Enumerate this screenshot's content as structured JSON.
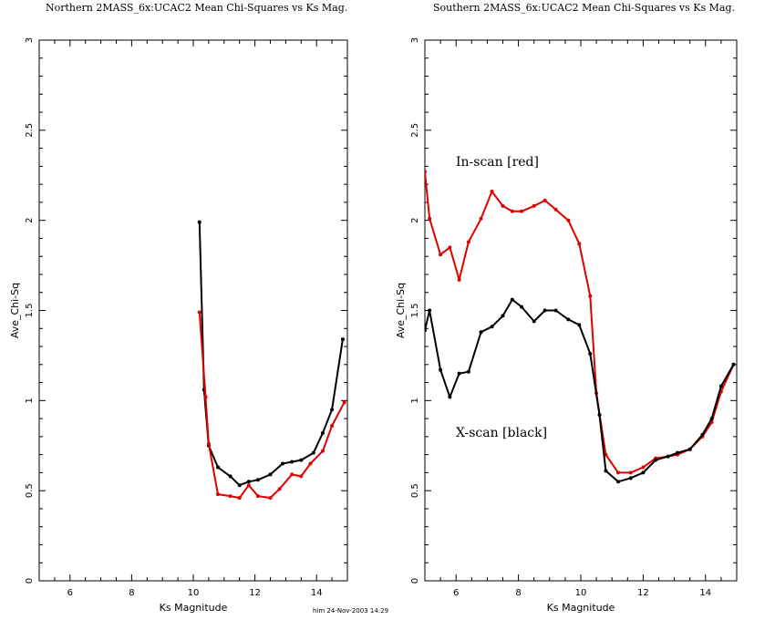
{
  "footer": {
    "stamp": "him 24-Nov-2003 14:29"
  },
  "colors": {
    "red": "#e00000",
    "black": "#000000"
  },
  "chart_data": [
    {
      "type": "line",
      "title": "Northern 2MASS_6x:UCAC2 Mean Chi-Squares vs  Ks Mag.",
      "xlabel": "Ks Magnitude",
      "ylabel": "Ave_Chi-Sq",
      "xlim": [
        5,
        15
      ],
      "ylim": [
        0,
        3
      ],
      "xticks": [
        "6",
        "8",
        "10",
        "12",
        "14"
      ],
      "yticks": [
        "0",
        "0.5",
        "1",
        "1.5",
        "2",
        "2.5",
        "3"
      ],
      "annotations": [],
      "series": [
        {
          "color": "#000000",
          "x": [
            10.2,
            10.35,
            10.5,
            10.8,
            11.2,
            11.5,
            11.8,
            12.1,
            12.5,
            12.9,
            13.2,
            13.5,
            13.9,
            14.2,
            14.5,
            14.85
          ],
          "y": [
            1.99,
            1.06,
            0.75,
            0.63,
            0.58,
            0.53,
            0.55,
            0.56,
            0.59,
            0.65,
            0.66,
            0.67,
            0.71,
            0.82,
            0.95,
            1.34
          ]
        },
        {
          "color": "#e00000",
          "x": [
            10.2,
            10.4,
            10.5,
            10.8,
            11.2,
            11.5,
            11.8,
            12.1,
            12.5,
            12.8,
            13.2,
            13.5,
            13.8,
            14.2,
            14.5,
            14.9
          ],
          "y": [
            1.49,
            1.02,
            0.76,
            0.48,
            0.47,
            0.46,
            0.53,
            0.47,
            0.46,
            0.51,
            0.59,
            0.58,
            0.65,
            0.72,
            0.86,
            0.99
          ]
        }
      ]
    },
    {
      "type": "line",
      "title": "Southern 2MASS_6x:UCAC2 Mean Chi-Squares vs  Ks Mag.",
      "xlabel": "Ks Magnitude",
      "ylabel": "Ave_Chi-Sq",
      "xlim": [
        5,
        15
      ],
      "ylim": [
        0,
        3
      ],
      "xticks": [
        "6",
        "8",
        "10",
        "12",
        "14"
      ],
      "yticks": [
        "0",
        "0.5",
        "1",
        "1.5",
        "2",
        "2.5",
        "3"
      ],
      "annotations": [
        "In-scan [red]",
        "X-scan [black]"
      ],
      "series": [
        {
          "color": "#e00000",
          "x": [
            5.0,
            5.15,
            5.5,
            5.8,
            6.1,
            6.4,
            6.8,
            7.15,
            7.5,
            7.8,
            8.1,
            8.5,
            8.85,
            9.2,
            9.6,
            9.95,
            10.3,
            10.5,
            10.8,
            11.2,
            11.6,
            12.0,
            12.4,
            12.8,
            13.1,
            13.5,
            13.9,
            14.2,
            14.5,
            14.9
          ],
          "y": [
            2.27,
            2.01,
            1.81,
            1.85,
            1.67,
            1.88,
            2.01,
            2.16,
            2.08,
            2.05,
            2.05,
            2.08,
            2.11,
            2.06,
            2.0,
            1.87,
            1.58,
            1.04,
            0.7,
            0.6,
            0.6,
            0.63,
            0.68,
            0.69,
            0.7,
            0.73,
            0.8,
            0.88,
            1.05,
            1.2
          ]
        },
        {
          "color": "#000000",
          "x": [
            5.0,
            5.15,
            5.5,
            5.8,
            6.1,
            6.4,
            6.8,
            7.15,
            7.5,
            7.8,
            8.1,
            8.5,
            8.85,
            9.2,
            9.6,
            9.95,
            10.3,
            10.6,
            10.8,
            11.2,
            11.6,
            12.0,
            12.4,
            12.8,
            13.1,
            13.5,
            13.9,
            14.2,
            14.5,
            14.9
          ],
          "y": [
            1.39,
            1.5,
            1.17,
            1.02,
            1.15,
            1.16,
            1.38,
            1.41,
            1.47,
            1.56,
            1.52,
            1.44,
            1.5,
            1.5,
            1.45,
            1.42,
            1.26,
            0.92,
            0.61,
            0.55,
            0.57,
            0.6,
            0.67,
            0.69,
            0.71,
            0.73,
            0.81,
            0.9,
            1.08,
            1.2
          ]
        }
      ]
    }
  ]
}
